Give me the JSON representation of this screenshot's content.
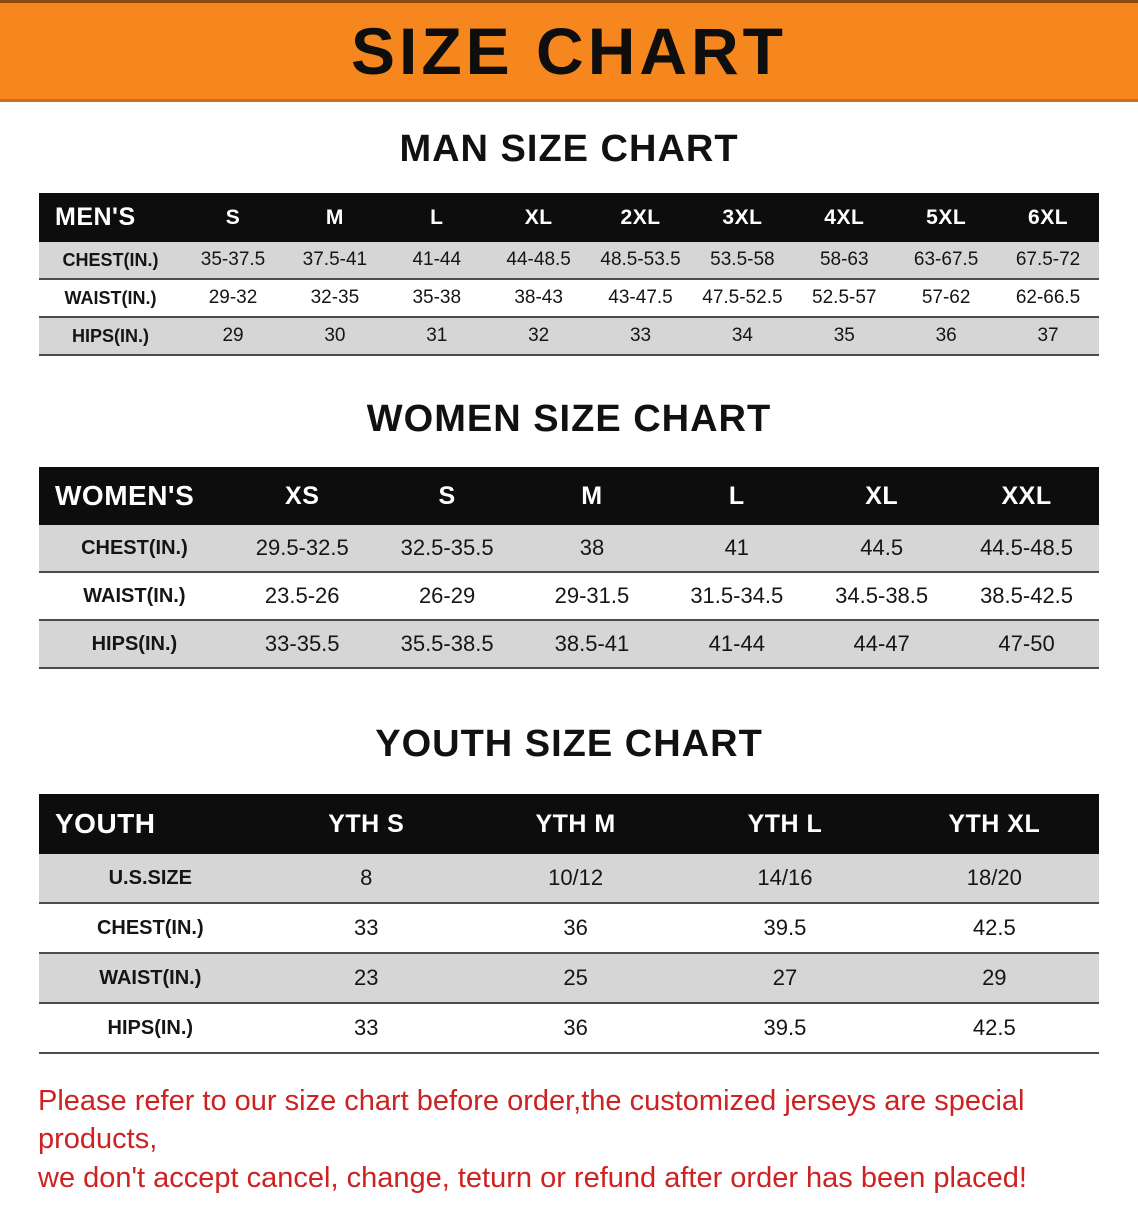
{
  "banner": {
    "title": "SIZE CHART"
  },
  "colors": {
    "banner_bg": "#f6871f",
    "header_bg": "#0d0d0d",
    "header_text": "#ffffff",
    "row_alt_bg": "#d6d6d6",
    "row_bg": "#ffffff",
    "heading_text": "#111111",
    "disclaimer_text": "#cc2222"
  },
  "sections": [
    {
      "id": "men",
      "heading": "MAN SIZE CHART",
      "table": {
        "header": [
          "MEN'S",
          "S",
          "M",
          "L",
          "XL",
          "2XL",
          "3XL",
          "4XL",
          "5XL",
          "6XL"
        ],
        "rows": [
          [
            "CHEST(IN.)",
            "35-37.5",
            "37.5-41",
            "41-44",
            "44-48.5",
            "48.5-53.5",
            "53.5-58",
            "58-63",
            "63-67.5",
            "67.5-72"
          ],
          [
            "WAIST(IN.)",
            "29-32",
            "32-35",
            "35-38",
            "38-43",
            "43-47.5",
            "47.5-52.5",
            "52.5-57",
            "57-62",
            "62-66.5"
          ],
          [
            "HIPS(IN.)",
            "29",
            "30",
            "31",
            "32",
            "33",
            "34",
            "35",
            "36",
            "37"
          ]
        ]
      }
    },
    {
      "id": "women",
      "heading": "WOMEN SIZE CHART",
      "table": {
        "header": [
          "WOMEN'S",
          "XS",
          "S",
          "M",
          "L",
          "XL",
          "XXL"
        ],
        "rows": [
          [
            "CHEST(IN.)",
            "29.5-32.5",
            "32.5-35.5",
            "38",
            "41",
            "44.5",
            "44.5-48.5"
          ],
          [
            "WAIST(IN.)",
            "23.5-26",
            "26-29",
            "29-31.5",
            "31.5-34.5",
            "34.5-38.5",
            "38.5-42.5"
          ],
          [
            "HIPS(IN.)",
            "33-35.5",
            "35.5-38.5",
            "38.5-41",
            "41-44",
            "44-47",
            "47-50"
          ]
        ]
      }
    },
    {
      "id": "youth",
      "heading": "YOUTH SIZE CHART",
      "table": {
        "header": [
          "YOUTH",
          "YTH S",
          "YTH M",
          "YTH L",
          "YTH XL"
        ],
        "rows": [
          [
            "U.S.SIZE",
            "8",
            "10/12",
            "14/16",
            "18/20"
          ],
          [
            "CHEST(IN.)",
            "33",
            "36",
            "39.5",
            "42.5"
          ],
          [
            "WAIST(IN.)",
            "23",
            "25",
            "27",
            "29"
          ],
          [
            "HIPS(IN.)",
            "33",
            "36",
            "39.5",
            "42.5"
          ]
        ]
      }
    }
  ],
  "disclaimer": {
    "line1": "Please refer to our size chart before order,the customized jerseys are special products,",
    "line2": "we don't accept cancel, change, teturn or refund after order has been placed!"
  }
}
